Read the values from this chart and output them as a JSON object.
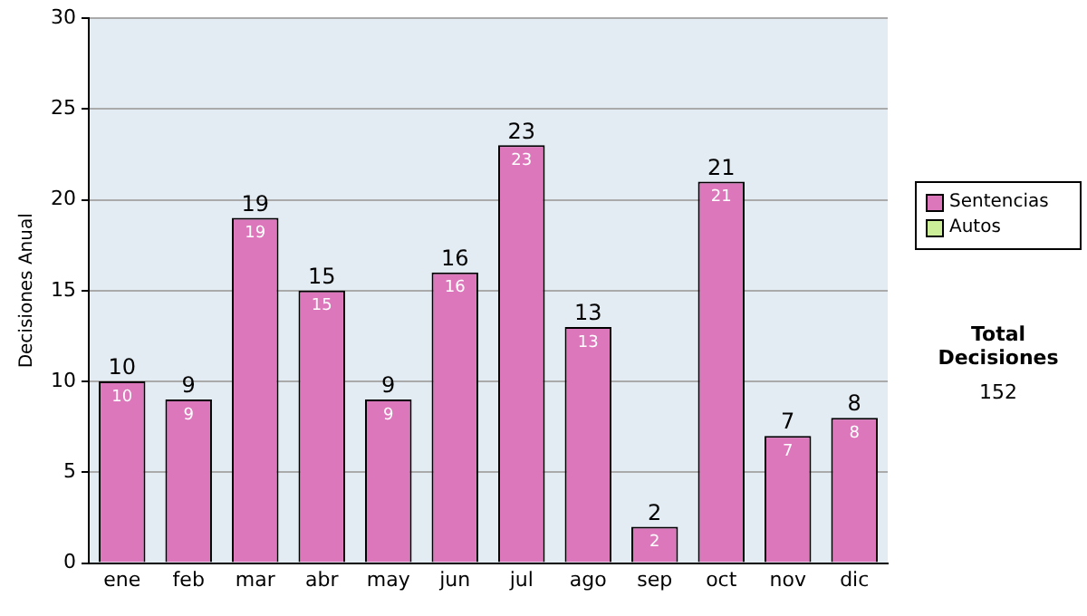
{
  "chart_data": {
    "type": "bar",
    "stacked": true,
    "ylabel": "Decisiones Anual",
    "categories": [
      "ene",
      "feb",
      "mar",
      "abr",
      "may",
      "jun",
      "jul",
      "ago",
      "sep",
      "oct",
      "nov",
      "dic"
    ],
    "series": [
      {
        "name": "Sentencias",
        "color": "#dd77bb",
        "values": [
          10,
          9,
          19,
          15,
          9,
          16,
          23,
          13,
          2,
          21,
          7,
          8
        ],
        "value_labels": [
          "10",
          "9",
          "19",
          "15",
          "9",
          "16",
          "23",
          "13",
          "2",
          "21",
          "7",
          "8"
        ]
      },
      {
        "name": "Autos",
        "color": "#ccee99",
        "values": [
          0,
          0,
          0,
          0,
          0,
          0,
          0,
          0,
          0,
          0,
          0,
          0
        ]
      }
    ],
    "totals": [
      "10",
      "9",
      "19",
      "15",
      "9",
      "16",
      "23",
      "13",
      "2",
      "21",
      "7",
      "8"
    ],
    "ylim": [
      0,
      30
    ],
    "yticks": [
      0,
      5,
      10,
      15,
      20,
      25,
      30
    ],
    "grid": "y",
    "legend": "right",
    "annotations": [
      "Total Decisiones",
      "152"
    ]
  }
}
